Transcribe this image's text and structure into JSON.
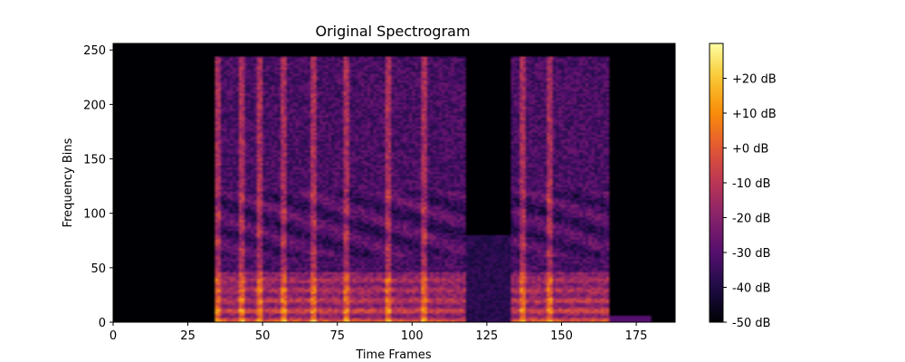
{
  "chart_data": {
    "type": "heatmap",
    "title": "Original Spectrogram",
    "xlabel": "Time Frames",
    "ylabel": "Frequency Bins",
    "xlim": [
      0,
      188
    ],
    "ylim": [
      0,
      256
    ],
    "x_ticks": [
      0,
      25,
      50,
      75,
      100,
      125,
      150,
      175
    ],
    "y_ticks": [
      0,
      50,
      100,
      150,
      200,
      250
    ],
    "grid": false,
    "colormap": "inferno",
    "colorbar": {
      "range": [
        -50,
        30
      ],
      "ticks": [
        -50,
        -40,
        -30,
        -20,
        -10,
        0,
        10,
        20
      ],
      "tick_labels": [
        "-50 dB",
        "-40 dB",
        "-30 dB",
        "-20 dB",
        "-10 dB",
        "+0 dB",
        "+10 dB",
        "+20 dB"
      ]
    },
    "speech_segments": [
      {
        "start": 34,
        "end": 117
      },
      {
        "start": 133,
        "end": 165
      }
    ],
    "onsets": [
      34,
      42,
      48,
      56,
      66,
      77,
      91,
      103,
      136,
      145
    ]
  }
}
